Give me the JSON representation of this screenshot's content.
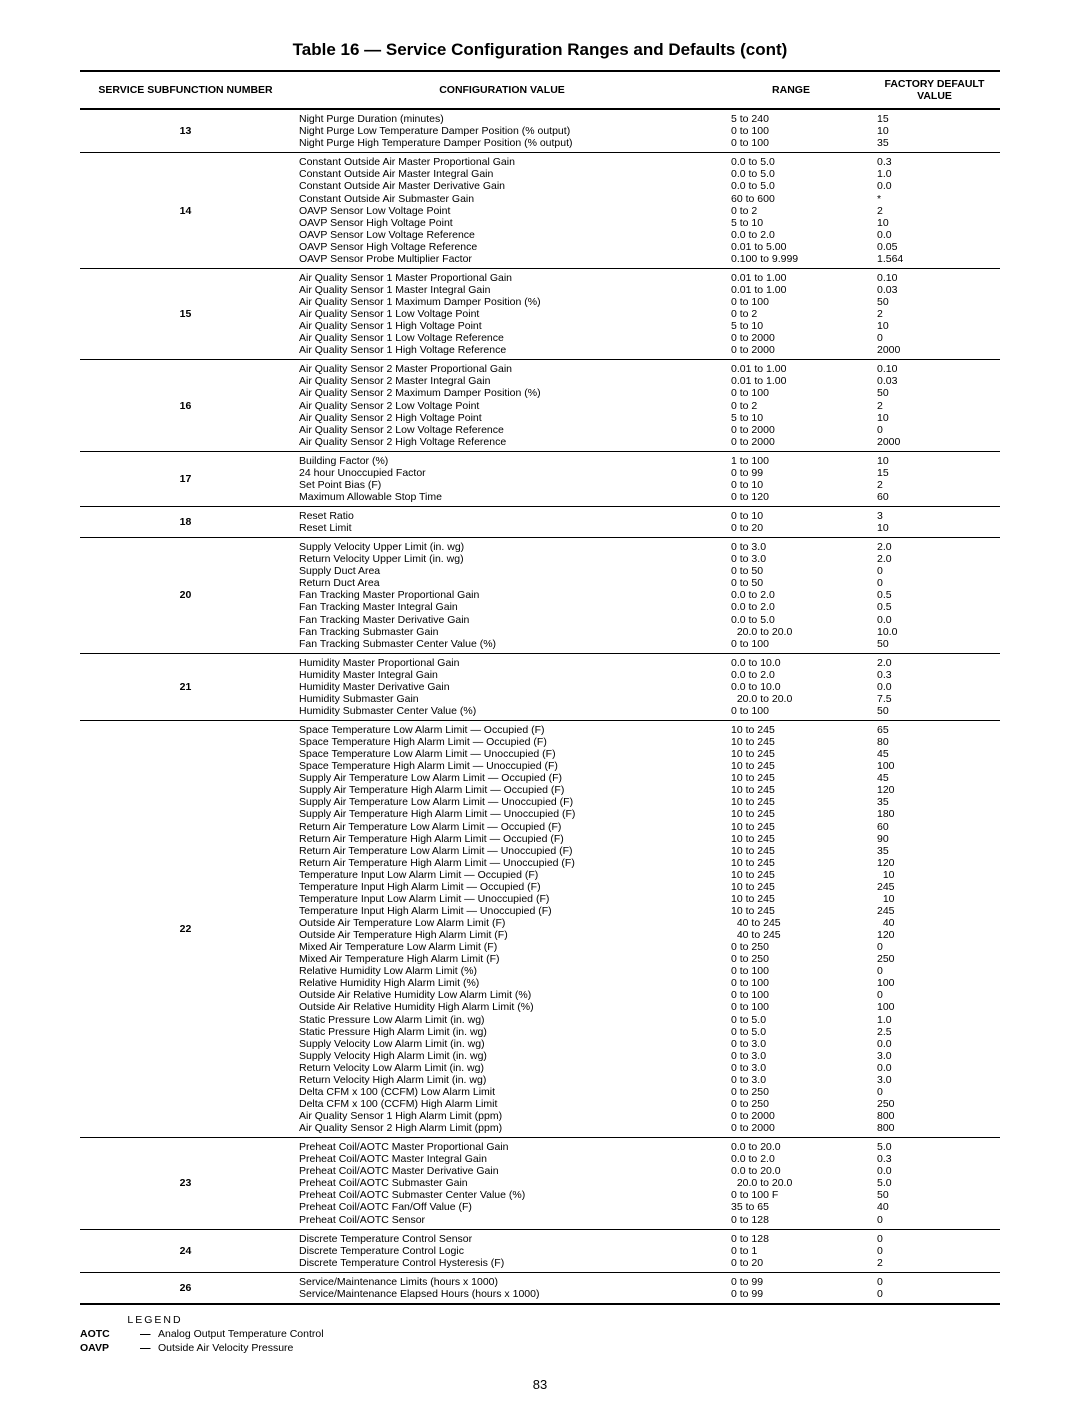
{
  "title": "Table 16 — Service Configuration Ranges and Defaults (cont)",
  "columns": {
    "num": "SERVICE SUBFUNCTION NUMBER",
    "conf": "CONFIGURATION VALUE",
    "range": "RANGE",
    "def": "FACTORY DEFAULT VALUE"
  },
  "rows": [
    {
      "num": "13",
      "conf": [
        "Night Purge Duration (minutes)",
        "Night Purge Low Temperature Damper Position (% output)",
        "Night Purge High Temperature Damper Position (% output)"
      ],
      "range": [
        "5 to 240",
        "0 to 100",
        "0 to 100"
      ],
      "def": [
        "15",
        "10",
        "35"
      ]
    },
    {
      "num": "14",
      "conf": [
        "Constant Outside Air Master Proportional Gain",
        "Constant Outside Air Master Integral Gain",
        "Constant Outside Air Master Derivative Gain",
        "Constant Outside Air Submaster Gain",
        "OAVP Sensor Low Voltage Point",
        "OAVP Sensor High Voltage Point",
        "OAVP Sensor Low Voltage Reference",
        "OAVP Sensor High Voltage Reference",
        "OAVP Sensor Probe Multiplier Factor"
      ],
      "range": [
        "0.0 to 5.0",
        "0.0 to 5.0",
        "0.0 to 5.0",
        "60 to 600",
        "0 to 2",
        "5 to 10",
        "0.0 to 2.0",
        "0.01 to 5.00",
        "0.100 to 9.999"
      ],
      "def": [
        "0.3",
        "1.0",
        "0.0",
        "*",
        "2",
        "10",
        "0.0",
        "0.05",
        "1.564"
      ]
    },
    {
      "num": "15",
      "conf": [
        "Air Quality Sensor 1 Master Proportional Gain",
        "Air Quality Sensor 1 Master Integral Gain",
        "Air Quality Sensor 1 Maximum Damper Position (%)",
        "Air Quality Sensor 1 Low Voltage Point",
        "Air Quality Sensor 1 High Voltage Point",
        "Air Quality Sensor 1 Low Voltage Reference",
        "Air Quality Sensor 1 High Voltage Reference"
      ],
      "range": [
        "0.01 to 1.00",
        "0.01 to 1.00",
        "0 to 100",
        "0 to 2",
        "5 to 10",
        "0 to 2000",
        "0 to 2000"
      ],
      "def": [
        "0.10",
        "0.03",
        "50",
        "2",
        "10",
        "0",
        "2000"
      ]
    },
    {
      "num": "16",
      "conf": [
        "Air Quality Sensor 2 Master Proportional Gain",
        "Air Quality Sensor 2 Master Integral Gain",
        "Air Quality Sensor 2 Maximum Damper Position (%)",
        "Air Quality Sensor 2 Low Voltage Point",
        "Air Quality Sensor 2 High Voltage Point",
        "Air Quality Sensor 2 Low Voltage Reference",
        "Air Quality Sensor 2 High Voltage Reference"
      ],
      "range": [
        "0.01 to 1.00",
        "0.01 to 1.00",
        "0 to 100",
        "0 to 2",
        "5 to 10",
        "0 to 2000",
        "0 to 2000"
      ],
      "def": [
        "0.10",
        "0.03",
        "50",
        "2",
        "10",
        "0",
        "2000"
      ]
    },
    {
      "num": "17",
      "conf": [
        "Building Factor (%)",
        "24 hour Unoccupied Factor",
        "Set Point Bias (F)",
        "Maximum Allowable Stop Time"
      ],
      "range": [
        "1 to 100",
        "0 to 99",
        "0 to 10",
        "0 to 120"
      ],
      "def": [
        "10",
        "15",
        "2",
        "60"
      ]
    },
    {
      "num": "18",
      "conf": [
        "Reset Ratio",
        "Reset Limit"
      ],
      "range": [
        "0 to 10",
        "0 to 20"
      ],
      "def": [
        "3",
        "10"
      ]
    },
    {
      "num": "20",
      "conf": [
        "Supply Velocity Upper Limit (in. wg)",
        "Return Velocity Upper Limit (in. wg)",
        "Supply Duct Area",
        "Return Duct Area",
        "Fan Tracking Master Proportional Gain",
        "Fan Tracking Master Integral Gain",
        "Fan Tracking Master Derivative Gain",
        "Fan Tracking Submaster Gain",
        "Fan Tracking Submaster Center Value (%)"
      ],
      "range": [
        "0 to 3.0",
        "0 to 3.0",
        "0 to 50",
        "0 to 50",
        "0.0 to 2.0",
        "0.0 to 2.0",
        "0.0 to 5.0",
        " 20.0 to 20.0",
        "0 to 100"
      ],
      "def": [
        "2.0",
        "2.0",
        "0",
        "0",
        "0.5",
        "0.5",
        "0.0",
        "10.0",
        "50"
      ]
    },
    {
      "num": "21",
      "conf": [
        "Humidity Master Proportional Gain",
        "Humidity Master Integral Gain",
        "Humidity Master Derivative Gain",
        "Humidity Submaster Gain",
        "Humidity Submaster Center Value (%)"
      ],
      "range": [
        "0.0 to 10.0",
        "0.0 to 2.0",
        "0.0 to 10.0",
        " 20.0 to 20.0",
        "0 to 100"
      ],
      "def": [
        "2.0",
        "0.3",
        "0.0",
        "7.5",
        "50"
      ]
    },
    {
      "num": "22",
      "conf": [
        "Space Temperature Low Alarm Limit — Occupied (F)",
        "Space Temperature High Alarm Limit — Occupied (F)",
        "Space Temperature Low Alarm Limit — Unoccupied (F)",
        "Space Temperature High Alarm Limit — Unoccupied (F)",
        "Supply Air Temperature Low Alarm Limit — Occupied (F)",
        "Supply Air Temperature High Alarm Limit — Occupied (F)",
        "Supply Air Temperature Low Alarm Limit — Unoccupied (F)",
        "Supply Air Temperature High Alarm Limit — Unoccupied (F)",
        "Return Air Temperature Low Alarm Limit — Occupied (F)",
        "Return Air Temperature High Alarm Limit — Occupied (F)",
        "Return Air Temperature Low Alarm Limit — Unoccupied (F)",
        "Return Air Temperature High Alarm Limit — Unoccupied (F)",
        "Temperature Input Low Alarm Limit — Occupied (F)",
        "Temperature Input High Alarm Limit — Occupied (F)",
        "Temperature Input Low Alarm Limit — Unoccupied (F)",
        "Temperature Input High Alarm Limit — Unoccupied (F)",
        "Outside Air Temperature Low Alarm Limit (F)",
        "Outside Air Temperature High Alarm Limit (F)",
        "Mixed Air Temperature Low Alarm Limit (F)",
        "Mixed Air Temperature High Alarm Limit (F)",
        "Relative Humidity Low Alarm Limit (%)",
        "Relative Humidity High Alarm Limit (%)",
        "Outside Air Relative Humidity Low Alarm Limit (%)",
        "Outside Air Relative Humidity High Alarm Limit (%)",
        "Static Pressure Low Alarm Limit (in. wg)",
        "Static Pressure High Alarm Limit (in. wg)",
        "Supply Velocity Low Alarm Limit (in. wg)",
        "Supply Velocity High Alarm Limit (in. wg)",
        "Return Velocity Low Alarm Limit (in. wg)",
        "Return Velocity High Alarm Limit (in. wg)",
        "Delta CFM x 100 (CCFM) Low Alarm Limit",
        "Delta CFM x 100 (CCFM) High Alarm Limit",
        "Air Quality Sensor 1 High Alarm Limit (ppm)",
        "Air Quality Sensor 2 High Alarm Limit (ppm)"
      ],
      "range": [
        "10 to 245",
        "10 to 245",
        "10 to 245",
        "10 to 245",
        "10 to 245",
        "10 to 245",
        "10 to 245",
        "10 to 245",
        "10 to 245",
        "10 to 245",
        "10 to 245",
        "10 to 245",
        "10 to 245",
        "10 to 245",
        "10 to 245",
        "10 to 245",
        " 40 to 245",
        " 40 to 245",
        "0 to 250",
        "0 to 250",
        "0 to 100",
        "0 to 100",
        "0 to 100",
        "0 to 100",
        "0 to 5.0",
        "0 to 5.0",
        "0 to 3.0",
        "0 to 3.0",
        "0 to 3.0",
        "0 to 3.0",
        "0 to 250",
        "0 to 250",
        "0 to 2000",
        "0 to 2000"
      ],
      "def": [
        "65",
        "80",
        "45",
        "100",
        "45",
        "120",
        "35",
        "180",
        "60",
        "90",
        "35",
        "120",
        " 10",
        "245",
        " 10",
        "245",
        " 40",
        "120",
        "0",
        "250",
        "0",
        "100",
        "0",
        "100",
        "1.0",
        "2.5",
        "0.0",
        "3.0",
        "0.0",
        "3.0",
        "0",
        "250",
        "800",
        "800"
      ]
    },
    {
      "num": "23",
      "conf": [
        "Preheat Coil/AOTC Master Proportional Gain",
        "Preheat Coil/AOTC Master Integral Gain",
        "Preheat Coil/AOTC Master Derivative Gain",
        "Preheat Coil/AOTC Submaster Gain",
        "Preheat Coil/AOTC Submaster Center Value (%)",
        "Preheat Coil/AOTC Fan/Off Value (F)",
        "Preheat Coil/AOTC Sensor"
      ],
      "range": [
        "0.0 to 20.0",
        "0.0 to 2.0",
        "0.0 to 20.0",
        " 20.0 to 20.0",
        "0 to 100 F",
        "35 to 65",
        "0 to 128"
      ],
      "def": [
        "5.0",
        "0.3",
        "0.0",
        "5.0",
        "50",
        "40",
        "0"
      ]
    },
    {
      "num": "24",
      "conf": [
        "Discrete Temperature Control Sensor",
        "Discrete Temperature Control Logic",
        "Discrete Temperature Control Hysteresis (F)"
      ],
      "range": [
        "0 to 128",
        "0 to 1",
        "0 to 20"
      ],
      "def": [
        "0",
        "0",
        "2"
      ]
    },
    {
      "num": "26",
      "conf": [
        "Service/Maintenance Limits (hours x 1000)",
        "Service/Maintenance Elapsed Hours (hours x 1000)"
      ],
      "range": [
        "0 to 99",
        "0 to 99"
      ],
      "def": [
        "0",
        "0"
      ]
    }
  ],
  "legend": {
    "header": "LEGEND",
    "items": [
      {
        "abbr": "AOTC",
        "dash": "—",
        "text": "Analog Output Temperature Control"
      },
      {
        "abbr": "OAVP",
        "dash": "—",
        "text": "Outside Air Velocity Pressure"
      }
    ]
  },
  "pagenum": "83"
}
